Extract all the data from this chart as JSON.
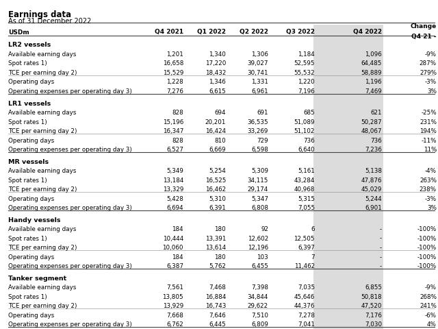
{
  "title": "Earnings data",
  "subtitle": "As of 31 December 2022",
  "columns": [
    "USDm",
    "Q4 2021",
    "Q1 2022",
    "Q2 2022",
    "Q3 2022",
    "Q4 2022",
    "Change\nQ4 21 -"
  ],
  "sections": [
    {
      "header": "LR2 vessels",
      "rows": [
        [
          "Available earning days",
          "1,201",
          "1,340",
          "1,306",
          "1,184",
          "1,096",
          "-9%"
        ],
        [
          "Spot rates 1)",
          "16,658",
          "17,220",
          "39,027",
          "52,595",
          "64,485",
          "287%"
        ],
        [
          "TCE per earning day 2)",
          "15,529",
          "18,432",
          "30,741",
          "55,532",
          "58,889",
          "279%"
        ],
        [
          "Operating days",
          "1,228",
          "1,346",
          "1,331",
          "1,220",
          "1,196",
          "-3%"
        ],
        [
          "Operating expenses per operating day 3)",
          "7,276",
          "6,615",
          "6,961",
          "7,196",
          "7,469",
          "3%"
        ]
      ],
      "divider_after": [
        2
      ]
    },
    {
      "header": "LR1 vessels",
      "rows": [
        [
          "Available earning days",
          "828",
          "694",
          "691",
          "685",
          "621",
          "-25%"
        ],
        [
          "Spot rates 1)",
          "15,196",
          "20,201",
          "36,535",
          "51,089",
          "50,287",
          "231%"
        ],
        [
          "TCE per earning day 2)",
          "16,347",
          "16,424",
          "33,269",
          "51,102",
          "48,067",
          "194%"
        ],
        [
          "Operating days",
          "828",
          "810",
          "729",
          "736",
          "736",
          "-11%"
        ],
        [
          "Operating expenses per operating day 3)",
          "6,527",
          "6,669",
          "6,598",
          "6,640",
          "7,236",
          "11%"
        ]
      ],
      "divider_after": [
        2
      ]
    },
    {
      "header": "MR vessels",
      "rows": [
        [
          "Available earning days",
          "5,349",
          "5,254",
          "5,309",
          "5,161",
          "5,138",
          "-4%"
        ],
        [
          "Spot rates 1)",
          "13,184",
          "16,525",
          "34,115",
          "43,284",
          "47,876",
          "263%"
        ],
        [
          "TCE per earning day 2)",
          "13,329",
          "16,462",
          "29,174",
          "40,968",
          "45,029",
          "238%"
        ],
        [
          "Operating days",
          "5,428",
          "5,310",
          "5,347",
          "5,315",
          "5,244",
          "-3%"
        ],
        [
          "Operating expenses per operating day 3)",
          "6,694",
          "6,391",
          "6,808",
          "7,055",
          "6,901",
          "3%"
        ]
      ],
      "divider_after": [
        2
      ]
    },
    {
      "header": "Handy vessels",
      "rows": [
        [
          "Available earning days",
          "184",
          "180",
          "92",
          "6",
          "-",
          "-100%"
        ],
        [
          "Spot rates 1)",
          "10,444",
          "13,391",
          "12,602",
          "12,505",
          "-",
          "-100%"
        ],
        [
          "TCE per earning day 2)",
          "10,060",
          "13,614",
          "12,196",
          "6,397",
          "-",
          "-100%"
        ],
        [
          "Operating days",
          "184",
          "180",
          "103",
          "7",
          "-",
          "-100%"
        ],
        [
          "Operating expenses per operating day 3)",
          "6,387",
          "5,762",
          "6,455",
          "11,462",
          "-",
          "-100%"
        ]
      ],
      "divider_after": [
        2
      ]
    },
    {
      "header": "Tanker segment",
      "rows": [
        [
          "Available earning days",
          "7,561",
          "7,468",
          "7,398",
          "7,035",
          "6,855",
          "-9%"
        ],
        [
          "Spot rates 1)",
          "13,805",
          "16,884",
          "34,844",
          "45,646",
          "50,818",
          "268%"
        ],
        [
          "TCE per earning day 2)",
          "13,929",
          "16,743",
          "29,622",
          "44,376",
          "47,520",
          "241%"
        ],
        [
          "Operating days",
          "7,668",
          "7,646",
          "7,510",
          "7,278",
          "7,176",
          "-6%"
        ],
        [
          "Operating expenses per operating day 3)",
          "6,762",
          "6,445",
          "6,809",
          "7,041",
          "7,030",
          "4%"
        ]
      ],
      "divider_after": [
        2
      ]
    }
  ],
  "q4_2022_bg": "#dcdcdc",
  "fig_bg": "#ffffff",
  "text_color": "#000000",
  "line_color": "#888888",
  "strong_line_color": "#444444"
}
